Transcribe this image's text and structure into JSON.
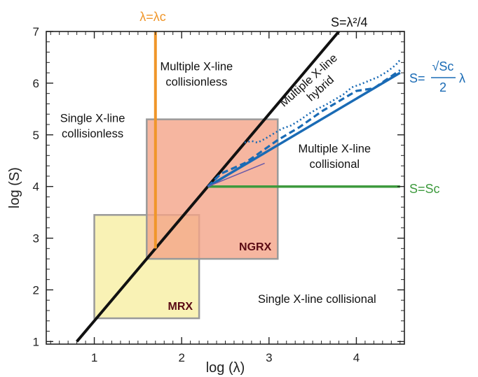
{
  "chart_data": {
    "type": "line",
    "xlabel": "log (λ)",
    "ylabel": "log (S)",
    "xlim": [
      0.45,
      4.55
    ],
    "ylim": [
      0.95,
      7.0
    ],
    "x_ticks": [
      "1",
      "2",
      "3",
      "4"
    ],
    "y_ticks": [
      "1",
      "2",
      "3",
      "4",
      "5",
      "6",
      "7"
    ],
    "grid": false,
    "series": [
      {
        "name": "S=λ²/4",
        "color": "#111111",
        "style": "solid",
        "x": [
          0.8,
          3.8
        ],
        "y": [
          1.0,
          7.0
        ]
      },
      {
        "name": "λ=λc",
        "color": "#f0962a",
        "style": "solid",
        "x": [
          1.7,
          1.7
        ],
        "y": [
          2.8,
          7.0
        ]
      },
      {
        "name": "S=Sc",
        "color": "#3d9a3d",
        "style": "solid",
        "x": [
          2.3,
          4.5
        ],
        "y": [
          4.0,
          4.0
        ]
      },
      {
        "name": "S=√Sc/2 λ",
        "color": "#1a6bb5",
        "style": "solid",
        "x": [
          2.3,
          4.5
        ],
        "y": [
          4.0,
          6.2
        ]
      },
      {
        "name": "",
        "color": "#1a6bb5",
        "style": "dashed",
        "x": [
          2.3,
          2.45,
          2.72,
          2.85,
          3.1,
          3.35,
          3.6,
          3.85,
          4.0,
          4.2,
          4.5
        ],
        "y": [
          4.0,
          4.25,
          4.45,
          4.6,
          4.9,
          5.15,
          5.45,
          5.7,
          5.85,
          5.9,
          6.25
        ]
      },
      {
        "name": "",
        "color": "#1a6bb5",
        "style": "dotted",
        "x": [
          2.72,
          2.8,
          2.87,
          2.95,
          3.05,
          3.15,
          3.25,
          3.35,
          3.45,
          3.55,
          3.65,
          3.75,
          3.85,
          3.95,
          4.05,
          4.15,
          4.25,
          4.35,
          4.45,
          4.5
        ],
        "y": [
          4.85,
          4.88,
          4.85,
          4.92,
          5.02,
          5.12,
          5.18,
          5.28,
          5.4,
          5.5,
          5.58,
          5.68,
          5.78,
          5.92,
          5.98,
          6.05,
          6.12,
          6.22,
          6.35,
          6.45
        ]
      }
    ],
    "boxes": [
      {
        "label": "MRX",
        "x": [
          1.0,
          2.2
        ],
        "y": [
          1.45,
          3.45
        ],
        "fill": "#f8f0a8"
      },
      {
        "label": "NGRX",
        "x": [
          1.6,
          3.1
        ],
        "y": [
          2.6,
          5.3
        ],
        "fill": "#f4a488"
      }
    ],
    "region_labels": [
      {
        "lines": [
          "Multiple X-line",
          "collisionless"
        ],
        "x": 2.17,
        "y": [
          6.25,
          5.95
        ]
      },
      {
        "lines": [
          "Single X-line",
          "collisionless"
        ],
        "x": 0.98,
        "y": [
          5.25,
          4.95
        ]
      },
      {
        "lines": [
          "Multiple X-line",
          "collisional"
        ],
        "x": 3.75,
        "y": [
          4.66,
          4.36
        ]
      },
      {
        "lines": [
          "Single X-line collisional"
        ],
        "x": 3.55,
        "y": [
          1.75
        ]
      }
    ],
    "rotated_labels": [
      "Multiple X-line",
      "hybrid"
    ],
    "line_labels": {
      "lambda_c": "λ=λc",
      "s_lambda_sq": "S=λ²/4",
      "s_sc": "S=Sc",
      "s_sqrt": {
        "prefix": "S=",
        "numerator": "√Sc",
        "denominator": "2",
        "suffix": "λ"
      }
    }
  }
}
